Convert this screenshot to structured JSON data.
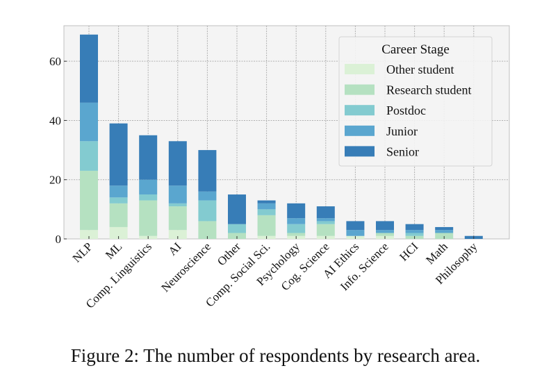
{
  "caption": "Figure 2: The number of respondents by research area.",
  "chart_data": {
    "type": "bar",
    "stacked": true,
    "title": "",
    "xlabel": "",
    "ylabel": "",
    "ylim": [
      0,
      72
    ],
    "yticks": [
      0,
      20,
      40,
      60
    ],
    "grid": true,
    "legend_title": "Career Stage",
    "legend_position": "top-right",
    "categories": [
      "NLP",
      "ML",
      "Comp. Linguistics",
      "AI",
      "Neuroscience",
      "Other",
      "Comp. Social Sci.",
      "Psychology",
      "Cog. Science",
      "AI Ethics",
      "Info. Science",
      "HCI",
      "Math",
      "Philosophy"
    ],
    "series": [
      {
        "name": "Other student",
        "color": "#dbf1d6",
        "values": [
          3,
          4,
          1,
          3,
          0,
          0,
          1,
          1,
          1,
          1,
          1,
          0,
          0,
          0
        ]
      },
      {
        "name": "Research student",
        "color": "#b5e1c1",
        "values": [
          20,
          8,
          12,
          8,
          6,
          2,
          7,
          1,
          4,
          0,
          1,
          1,
          2,
          0
        ]
      },
      {
        "name": "Postdoc",
        "color": "#83cbd0",
        "values": [
          10,
          2,
          2,
          1,
          7,
          3,
          2,
          3,
          1,
          0,
          0,
          1,
          0,
          0
        ]
      },
      {
        "name": "Junior",
        "color": "#5aa6cf",
        "values": [
          13,
          4,
          5,
          6,
          3,
          0,
          2,
          2,
          1,
          2,
          1,
          1,
          1,
          0
        ]
      },
      {
        "name": "Senior",
        "color": "#377db7",
        "values": [
          23,
          21,
          15,
          15,
          14,
          10,
          1,
          5,
          4,
          3,
          3,
          2,
          1,
          1
        ]
      }
    ]
  }
}
